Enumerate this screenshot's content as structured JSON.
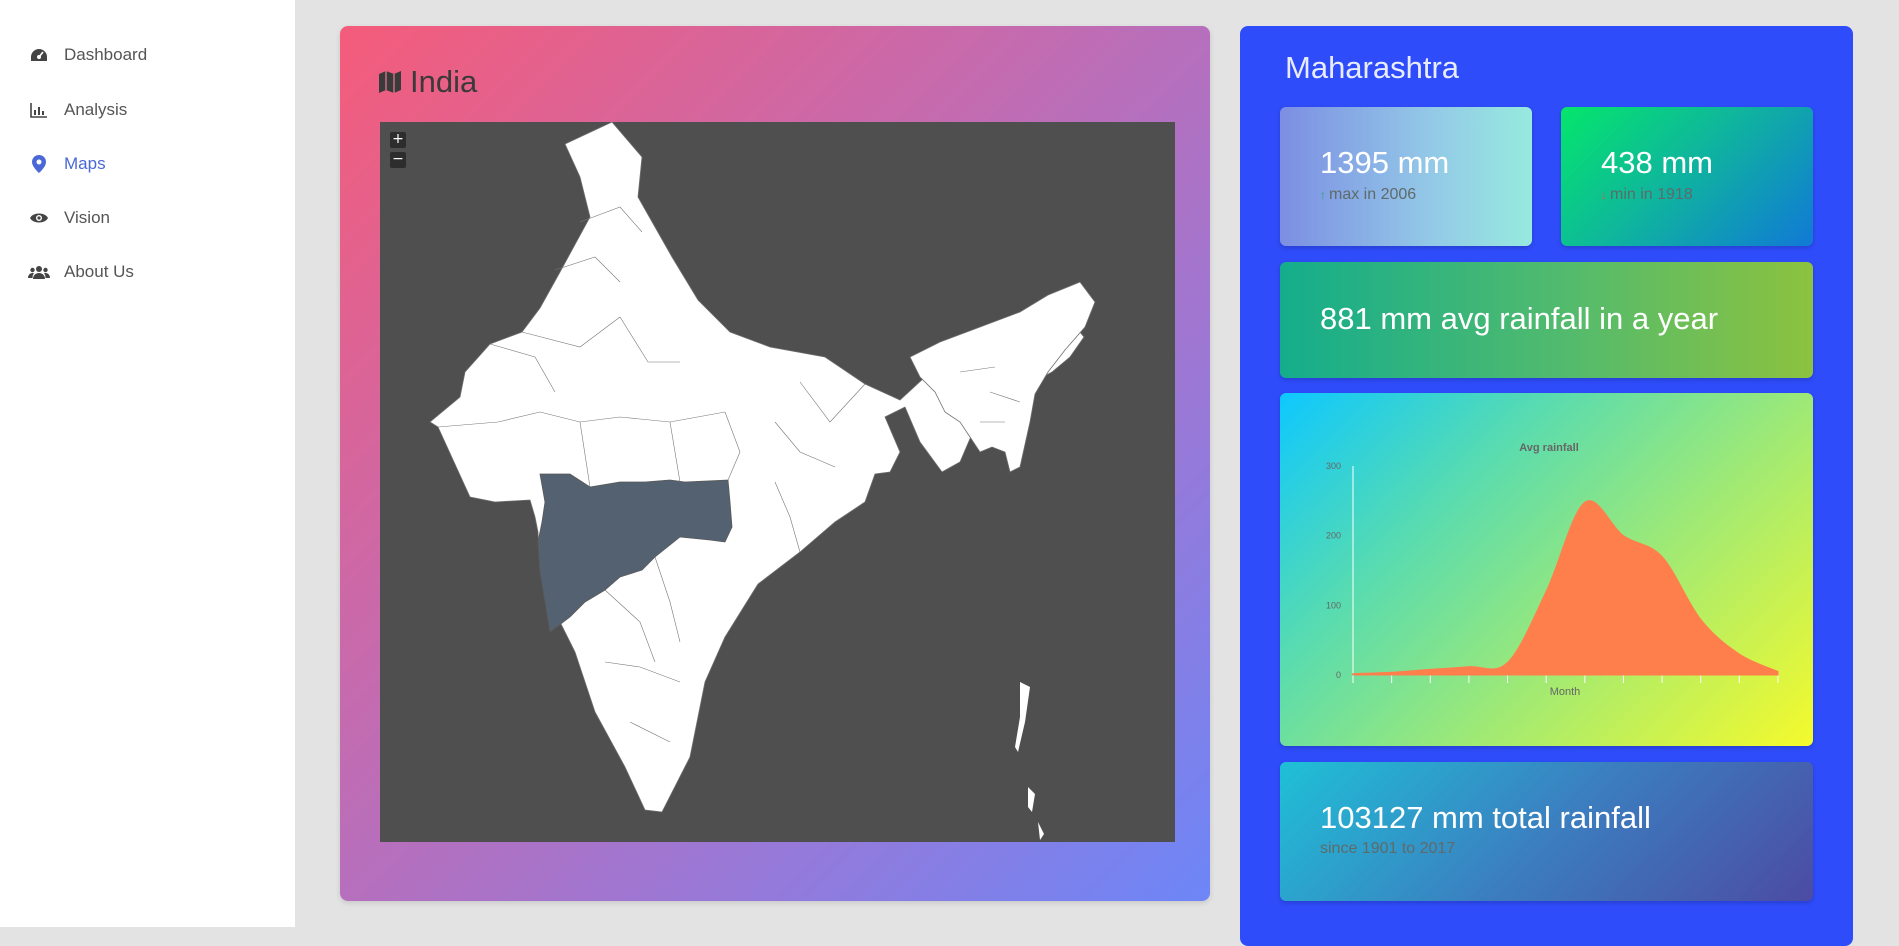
{
  "sidebar": {
    "items": [
      {
        "label": "Dashboard",
        "icon": "dashboard-icon"
      },
      {
        "label": "Analysis",
        "icon": "bar-chart-icon"
      },
      {
        "label": "Maps",
        "icon": "map-marker-icon",
        "active": true
      },
      {
        "label": "Vision",
        "icon": "eye-icon"
      },
      {
        "label": "About Us",
        "icon": "users-icon"
      }
    ]
  },
  "map_panel": {
    "title": "India",
    "title_icon": "map-icon",
    "zoom_in": "+",
    "zoom_out": "−",
    "highlighted_region_color": "#536170"
  },
  "state_panel": {
    "state_name": "Maharashtra",
    "max_card": {
      "value": "1395 mm",
      "caption": "max in 2006",
      "arrow": "up-arrow-icon"
    },
    "min_card": {
      "value": "438 mm",
      "caption": "min in 1918",
      "arrow": "down-arrow-icon"
    },
    "avg_card": {
      "value": "881 mm avg rainfall in a year"
    },
    "total_card": {
      "value": "103127 mm total rainfall",
      "caption": "since 1901 to 2017"
    }
  },
  "chart_data": {
    "type": "area",
    "title": "Avg rainfall",
    "xlabel": "Month",
    "ylabel": "",
    "ylim": [
      0,
      300
    ],
    "yticks": [
      "0",
      "100",
      "200",
      "300"
    ],
    "x": [
      1,
      2,
      3,
      4,
      5,
      6,
      7,
      8,
      9,
      10,
      11,
      12
    ],
    "values": [
      2,
      4,
      8,
      12,
      18,
      120,
      248,
      200,
      170,
      80,
      30,
      5
    ],
    "color": "#ff7f4c",
    "grid": false
  }
}
